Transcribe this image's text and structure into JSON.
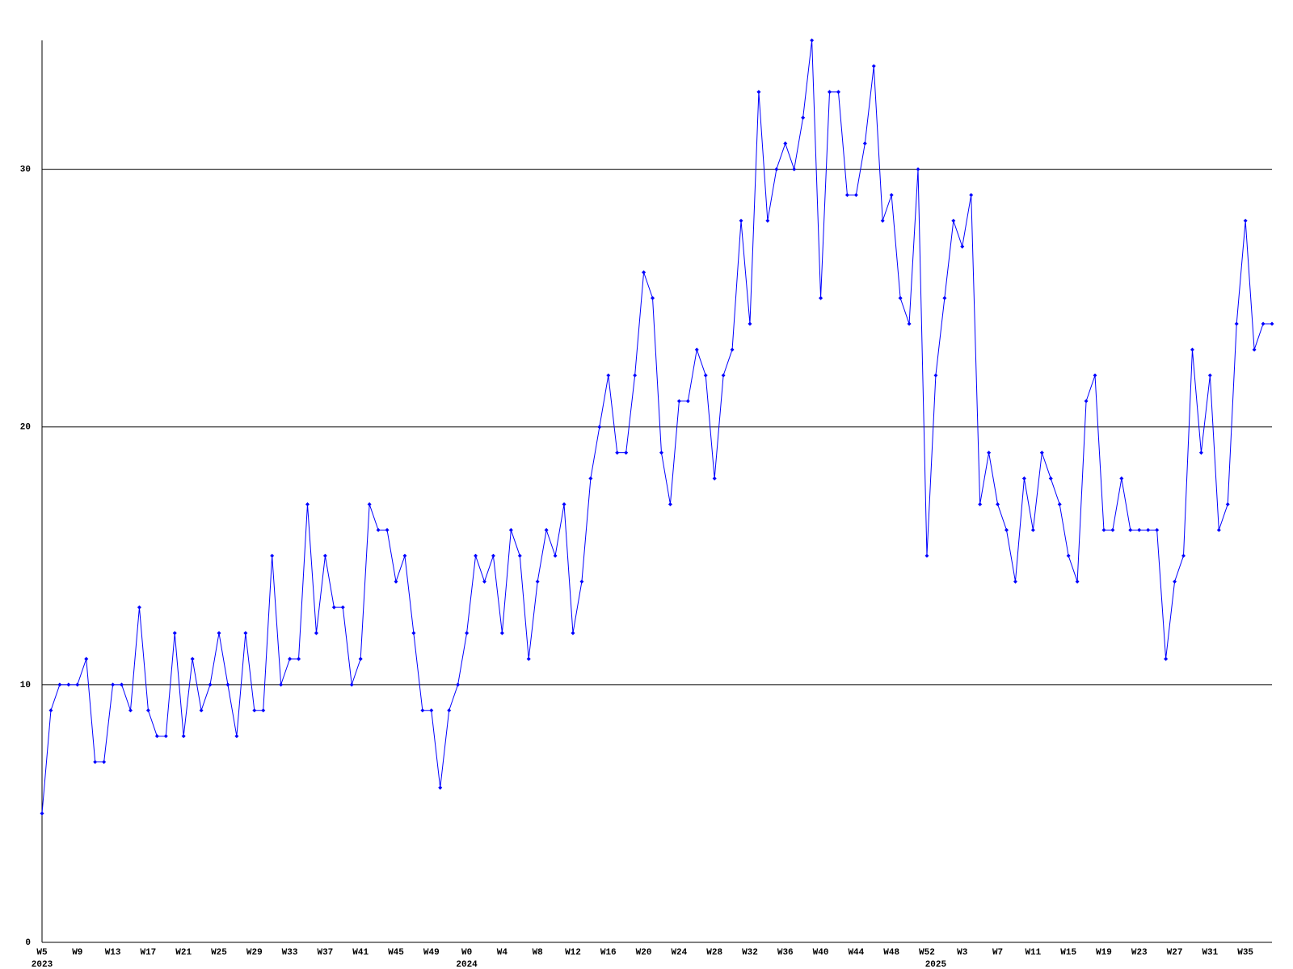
{
  "chart_data": {
    "type": "line",
    "color": "#0000ff",
    "grid": true,
    "ylim": [
      0,
      35
    ],
    "yticks": [
      0,
      10,
      20,
      30
    ],
    "categories": [
      "W5",
      null,
      null,
      null,
      "W9",
      null,
      null,
      null,
      "W13",
      null,
      null,
      null,
      "W17",
      null,
      null,
      null,
      "W21",
      null,
      null,
      null,
      "W25",
      null,
      null,
      null,
      "W29",
      null,
      null,
      null,
      "W33",
      null,
      null,
      null,
      "W37",
      null,
      null,
      null,
      "W41",
      null,
      null,
      null,
      "W45",
      null,
      null,
      null,
      "W49",
      null,
      null,
      null,
      "W0",
      null,
      null,
      null,
      "W4",
      null,
      null,
      null,
      "W8",
      null,
      null,
      null,
      "W12",
      null,
      null,
      null,
      "W16",
      null,
      null,
      null,
      "W20",
      null,
      null,
      null,
      "W24",
      null,
      null,
      null,
      "W28",
      null,
      null,
      null,
      "W32",
      null,
      null,
      null,
      "W36",
      null,
      null,
      null,
      "W40",
      null,
      null,
      null,
      "W44",
      null,
      null,
      null,
      "W48",
      null,
      null,
      null,
      "W52",
      null,
      null,
      null,
      "W3",
      null,
      null,
      null,
      "W7",
      null,
      null,
      null,
      "W11",
      null,
      null,
      null,
      "W15",
      null,
      null,
      null,
      "W19",
      null,
      null,
      null,
      "W23",
      null,
      null,
      null,
      "W27",
      null,
      null,
      null,
      "W31",
      null,
      null,
      null,
      "W35",
      null,
      null,
      null
    ],
    "years": [
      "2023",
      null,
      null,
      null,
      null,
      null,
      null,
      null,
      null,
      null,
      null,
      null,
      null,
      null,
      null,
      null,
      null,
      null,
      null,
      null,
      null,
      null,
      null,
      null,
      null,
      null,
      null,
      null,
      null,
      null,
      null,
      null,
      null,
      null,
      null,
      null,
      null,
      null,
      null,
      null,
      null,
      null,
      null,
      null,
      null,
      null,
      null,
      null,
      "2024",
      null,
      null,
      null,
      null,
      null,
      null,
      null,
      null,
      null,
      null,
      null,
      null,
      null,
      null,
      null,
      null,
      null,
      null,
      null,
      null,
      null,
      null,
      null,
      null,
      null,
      null,
      null,
      null,
      null,
      null,
      null,
      null,
      null,
      null,
      null,
      null,
      null,
      null,
      null,
      null,
      null,
      null,
      null,
      null,
      null,
      null,
      null,
      null,
      null,
      null,
      null,
      null,
      "2025",
      null,
      null,
      null,
      null,
      null,
      null,
      null,
      null,
      null,
      null,
      null,
      null,
      null,
      null,
      null,
      null,
      null,
      null,
      null,
      null,
      null,
      null,
      null,
      null,
      null,
      null,
      null,
      null,
      null,
      null,
      null,
      null,
      null,
      null,
      null,
      null,
      null,
      null
    ],
    "values": [
      5,
      9,
      10,
      10,
      10,
      11,
      7,
      7,
      10,
      10,
      9,
      13,
      9,
      8,
      8,
      12,
      8,
      11,
      9,
      10,
      12,
      10,
      8,
      12,
      9,
      9,
      15,
      10,
      11,
      11,
      17,
      12,
      15,
      13,
      13,
      10,
      11,
      17,
      16,
      16,
      14,
      15,
      12,
      9,
      9,
      6,
      9,
      10,
      12,
      15,
      14,
      15,
      12,
      16,
      15,
      11,
      14,
      16,
      15,
      17,
      12,
      14,
      18,
      20,
      22,
      19,
      19,
      22,
      26,
      25,
      19,
      17,
      21,
      21,
      23,
      22,
      18,
      22,
      23,
      28,
      24,
      33,
      28,
      30,
      31,
      30,
      32,
      35,
      25,
      33,
      33,
      29,
      29,
      31,
      34,
      28,
      29,
      25,
      24,
      30,
      15,
      22,
      25,
      28,
      27,
      29,
      17,
      19,
      17,
      16,
      14,
      18,
      16,
      19,
      18,
      17,
      15,
      14,
      21,
      22,
      16,
      16,
      18,
      16,
      16,
      16,
      16,
      11,
      14,
      15,
      23,
      19,
      22,
      16,
      17,
      24,
      28,
      23,
      24,
      24
    ]
  }
}
